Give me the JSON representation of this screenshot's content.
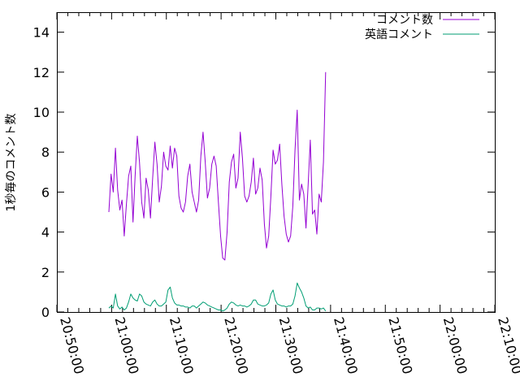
{
  "chart_data": {
    "type": "line",
    "title": "",
    "xlabel": "",
    "ylabel": "1秒毎のコメント数",
    "xlim": [
      "20:50:00",
      "22:10:00"
    ],
    "ylim": [
      0,
      15
    ],
    "x_ticks": [
      "20:50:00",
      "21:00:00",
      "21:10:00",
      "21:20:00",
      "21:30:00",
      "21:40:00",
      "21:50:00",
      "22:00:00",
      "22:10:00"
    ],
    "y_ticks": [
      0,
      2,
      4,
      6,
      8,
      10,
      12,
      14
    ],
    "grid": false,
    "legend_position": "top-right",
    "series": [
      {
        "name": "コメント数",
        "color": "#9400d3",
        "points": [
          [
            "20:59:30",
            5.0
          ],
          [
            "20:59:54",
            6.9
          ],
          [
            "21:00:18",
            6.0
          ],
          [
            "21:00:42",
            8.2
          ],
          [
            "21:01:06",
            6.1
          ],
          [
            "21:01:30",
            5.1
          ],
          [
            "21:01:54",
            5.6
          ],
          [
            "21:02:18",
            3.8
          ],
          [
            "21:02:42",
            5.4
          ],
          [
            "21:03:06",
            6.8
          ],
          [
            "21:03:30",
            7.3
          ],
          [
            "21:03:54",
            4.5
          ],
          [
            "21:04:18",
            6.8
          ],
          [
            "21:04:42",
            8.8
          ],
          [
            "21:05:06",
            7.5
          ],
          [
            "21:05:30",
            5.5
          ],
          [
            "21:05:54",
            4.7
          ],
          [
            "21:06:18",
            6.7
          ],
          [
            "21:06:42",
            6.1
          ],
          [
            "21:07:06",
            4.7
          ],
          [
            "21:07:30",
            6.7
          ],
          [
            "21:07:54",
            8.5
          ],
          [
            "21:08:18",
            7.4
          ],
          [
            "21:08:42",
            5.5
          ],
          [
            "21:09:06",
            6.3
          ],
          [
            "21:09:30",
            8.0
          ],
          [
            "21:09:54",
            7.3
          ],
          [
            "21:10:18",
            7.1
          ],
          [
            "21:10:42",
            8.3
          ],
          [
            "21:11:06",
            7.2
          ],
          [
            "21:11:30",
            8.2
          ],
          [
            "21:11:54",
            7.8
          ],
          [
            "21:12:18",
            5.8
          ],
          [
            "21:12:42",
            5.2
          ],
          [
            "21:13:06",
            5.0
          ],
          [
            "21:13:30",
            5.5
          ],
          [
            "21:13:54",
            6.8
          ],
          [
            "21:14:18",
            7.4
          ],
          [
            "21:14:42",
            6.0
          ],
          [
            "21:15:06",
            5.5
          ],
          [
            "21:15:30",
            5.0
          ],
          [
            "21:15:54",
            5.6
          ],
          [
            "21:16:18",
            7.8
          ],
          [
            "21:16:42",
            9.0
          ],
          [
            "21:17:06",
            7.5
          ],
          [
            "21:17:30",
            5.7
          ],
          [
            "21:17:54",
            6.2
          ],
          [
            "21:18:18",
            7.4
          ],
          [
            "21:18:42",
            7.8
          ],
          [
            "21:19:06",
            7.3
          ],
          [
            "21:19:30",
            5.5
          ],
          [
            "21:19:54",
            3.8
          ],
          [
            "21:20:18",
            2.7
          ],
          [
            "21:20:42",
            2.6
          ],
          [
            "21:21:06",
            4.0
          ],
          [
            "21:21:30",
            6.5
          ],
          [
            "21:21:54",
            7.5
          ],
          [
            "21:22:18",
            7.9
          ],
          [
            "21:22:42",
            6.2
          ],
          [
            "21:23:06",
            6.7
          ],
          [
            "21:23:30",
            9.0
          ],
          [
            "21:23:54",
            7.7
          ],
          [
            "21:24:18",
            5.8
          ],
          [
            "21:24:42",
            5.5
          ],
          [
            "21:25:06",
            5.8
          ],
          [
            "21:25:30",
            6.5
          ],
          [
            "21:25:54",
            7.7
          ],
          [
            "21:26:18",
            5.9
          ],
          [
            "21:26:42",
            6.2
          ],
          [
            "21:27:06",
            7.2
          ],
          [
            "21:27:30",
            6.6
          ],
          [
            "21:27:54",
            4.4
          ],
          [
            "21:28:18",
            3.2
          ],
          [
            "21:28:42",
            3.8
          ],
          [
            "21:29:06",
            5.8
          ],
          [
            "21:29:30",
            8.1
          ],
          [
            "21:29:54",
            7.4
          ],
          [
            "21:30:18",
            7.6
          ],
          [
            "21:30:42",
            8.4
          ],
          [
            "21:31:06",
            6.4
          ],
          [
            "21:31:30",
            4.8
          ],
          [
            "21:31:54",
            3.9
          ],
          [
            "21:32:18",
            3.5
          ],
          [
            "21:32:42",
            3.8
          ],
          [
            "21:33:06",
            5.3
          ],
          [
            "21:33:30",
            8.1
          ],
          [
            "21:33:54",
            10.1
          ],
          [
            "21:34:18",
            5.6
          ],
          [
            "21:34:42",
            6.4
          ],
          [
            "21:35:06",
            5.9
          ],
          [
            "21:35:30",
            4.2
          ],
          [
            "21:35:54",
            6.4
          ],
          [
            "21:36:18",
            8.6
          ],
          [
            "21:36:42",
            4.9
          ],
          [
            "21:37:06",
            5.1
          ],
          [
            "21:37:30",
            3.9
          ],
          [
            "21:37:54",
            5.9
          ],
          [
            "21:38:18",
            5.5
          ],
          [
            "21:38:42",
            7.5
          ],
          [
            "21:39:06",
            12.0
          ]
        ]
      },
      {
        "name": "英語コメント",
        "color": "#009e73",
        "points": [
          [
            "20:59:30",
            0.2
          ],
          [
            "20:59:54",
            0.3
          ],
          [
            "21:00:18",
            0.2
          ],
          [
            "21:00:42",
            0.9
          ],
          [
            "21:01:06",
            0.3
          ],
          [
            "21:01:30",
            0.15
          ],
          [
            "21:01:54",
            0.25
          ],
          [
            "21:02:18",
            0.1
          ],
          [
            "21:02:42",
            0.2
          ],
          [
            "21:03:06",
            0.5
          ],
          [
            "21:03:30",
            0.9
          ],
          [
            "21:03:54",
            0.7
          ],
          [
            "21:04:18",
            0.6
          ],
          [
            "21:04:42",
            0.55
          ],
          [
            "21:05:06",
            0.9
          ],
          [
            "21:05:30",
            0.8
          ],
          [
            "21:05:54",
            0.5
          ],
          [
            "21:06:18",
            0.4
          ],
          [
            "21:06:42",
            0.35
          ],
          [
            "21:07:06",
            0.3
          ],
          [
            "21:07:30",
            0.5
          ],
          [
            "21:07:54",
            0.6
          ],
          [
            "21:08:18",
            0.4
          ],
          [
            "21:08:42",
            0.3
          ],
          [
            "21:09:06",
            0.3
          ],
          [
            "21:09:30",
            0.4
          ],
          [
            "21:09:54",
            0.5
          ],
          [
            "21:10:18",
            1.1
          ],
          [
            "21:10:42",
            1.25
          ],
          [
            "21:11:06",
            0.7
          ],
          [
            "21:11:30",
            0.45
          ],
          [
            "21:11:54",
            0.35
          ],
          [
            "21:12:18",
            0.35
          ],
          [
            "21:12:42",
            0.3
          ],
          [
            "21:13:06",
            0.3
          ],
          [
            "21:13:30",
            0.25
          ],
          [
            "21:13:54",
            0.25
          ],
          [
            "21:14:18",
            0.2
          ],
          [
            "21:14:42",
            0.3
          ],
          [
            "21:15:06",
            0.3
          ],
          [
            "21:15:30",
            0.2
          ],
          [
            "21:15:54",
            0.3
          ],
          [
            "21:16:18",
            0.4
          ],
          [
            "21:16:42",
            0.5
          ],
          [
            "21:17:06",
            0.45
          ],
          [
            "21:17:30",
            0.35
          ],
          [
            "21:17:54",
            0.3
          ],
          [
            "21:18:18",
            0.25
          ],
          [
            "21:18:42",
            0.2
          ],
          [
            "21:19:06",
            0.15
          ],
          [
            "21:19:30",
            0.1
          ],
          [
            "21:19:54",
            0.1
          ],
          [
            "21:20:18",
            0.05
          ],
          [
            "21:20:42",
            0.1
          ],
          [
            "21:21:06",
            0.2
          ],
          [
            "21:21:30",
            0.4
          ],
          [
            "21:21:54",
            0.5
          ],
          [
            "21:22:18",
            0.45
          ],
          [
            "21:22:42",
            0.35
          ],
          [
            "21:23:06",
            0.3
          ],
          [
            "21:23:30",
            0.35
          ],
          [
            "21:23:54",
            0.3
          ],
          [
            "21:24:18",
            0.3
          ],
          [
            "21:24:42",
            0.25
          ],
          [
            "21:25:06",
            0.3
          ],
          [
            "21:25:30",
            0.4
          ],
          [
            "21:25:54",
            0.6
          ],
          [
            "21:26:18",
            0.6
          ],
          [
            "21:26:42",
            0.4
          ],
          [
            "21:27:06",
            0.35
          ],
          [
            "21:27:30",
            0.3
          ],
          [
            "21:27:54",
            0.3
          ],
          [
            "21:28:18",
            0.35
          ],
          [
            "21:28:42",
            0.45
          ],
          [
            "21:29:06",
            0.9
          ],
          [
            "21:29:30",
            1.1
          ],
          [
            "21:29:54",
            0.6
          ],
          [
            "21:30:18",
            0.4
          ],
          [
            "21:30:42",
            0.35
          ],
          [
            "21:31:06",
            0.3
          ],
          [
            "21:31:30",
            0.3
          ],
          [
            "21:31:54",
            0.25
          ],
          [
            "21:32:18",
            0.3
          ],
          [
            "21:32:42",
            0.3
          ],
          [
            "21:33:06",
            0.4
          ],
          [
            "21:33:30",
            0.8
          ],
          [
            "21:33:54",
            1.45
          ],
          [
            "21:34:18",
            1.2
          ],
          [
            "21:34:42",
            1.0
          ],
          [
            "21:35:06",
            0.7
          ],
          [
            "21:35:30",
            0.3
          ],
          [
            "21:35:54",
            0.2
          ],
          [
            "21:36:18",
            0.25
          ],
          [
            "21:36:42",
            0.1
          ],
          [
            "21:37:06",
            0.1
          ],
          [
            "21:37:30",
            0.2
          ],
          [
            "21:37:54",
            0.2
          ],
          [
            "21:38:18",
            0.15
          ],
          [
            "21:38:42",
            0.2
          ],
          [
            "21:39:06",
            0.05
          ]
        ]
      }
    ]
  }
}
